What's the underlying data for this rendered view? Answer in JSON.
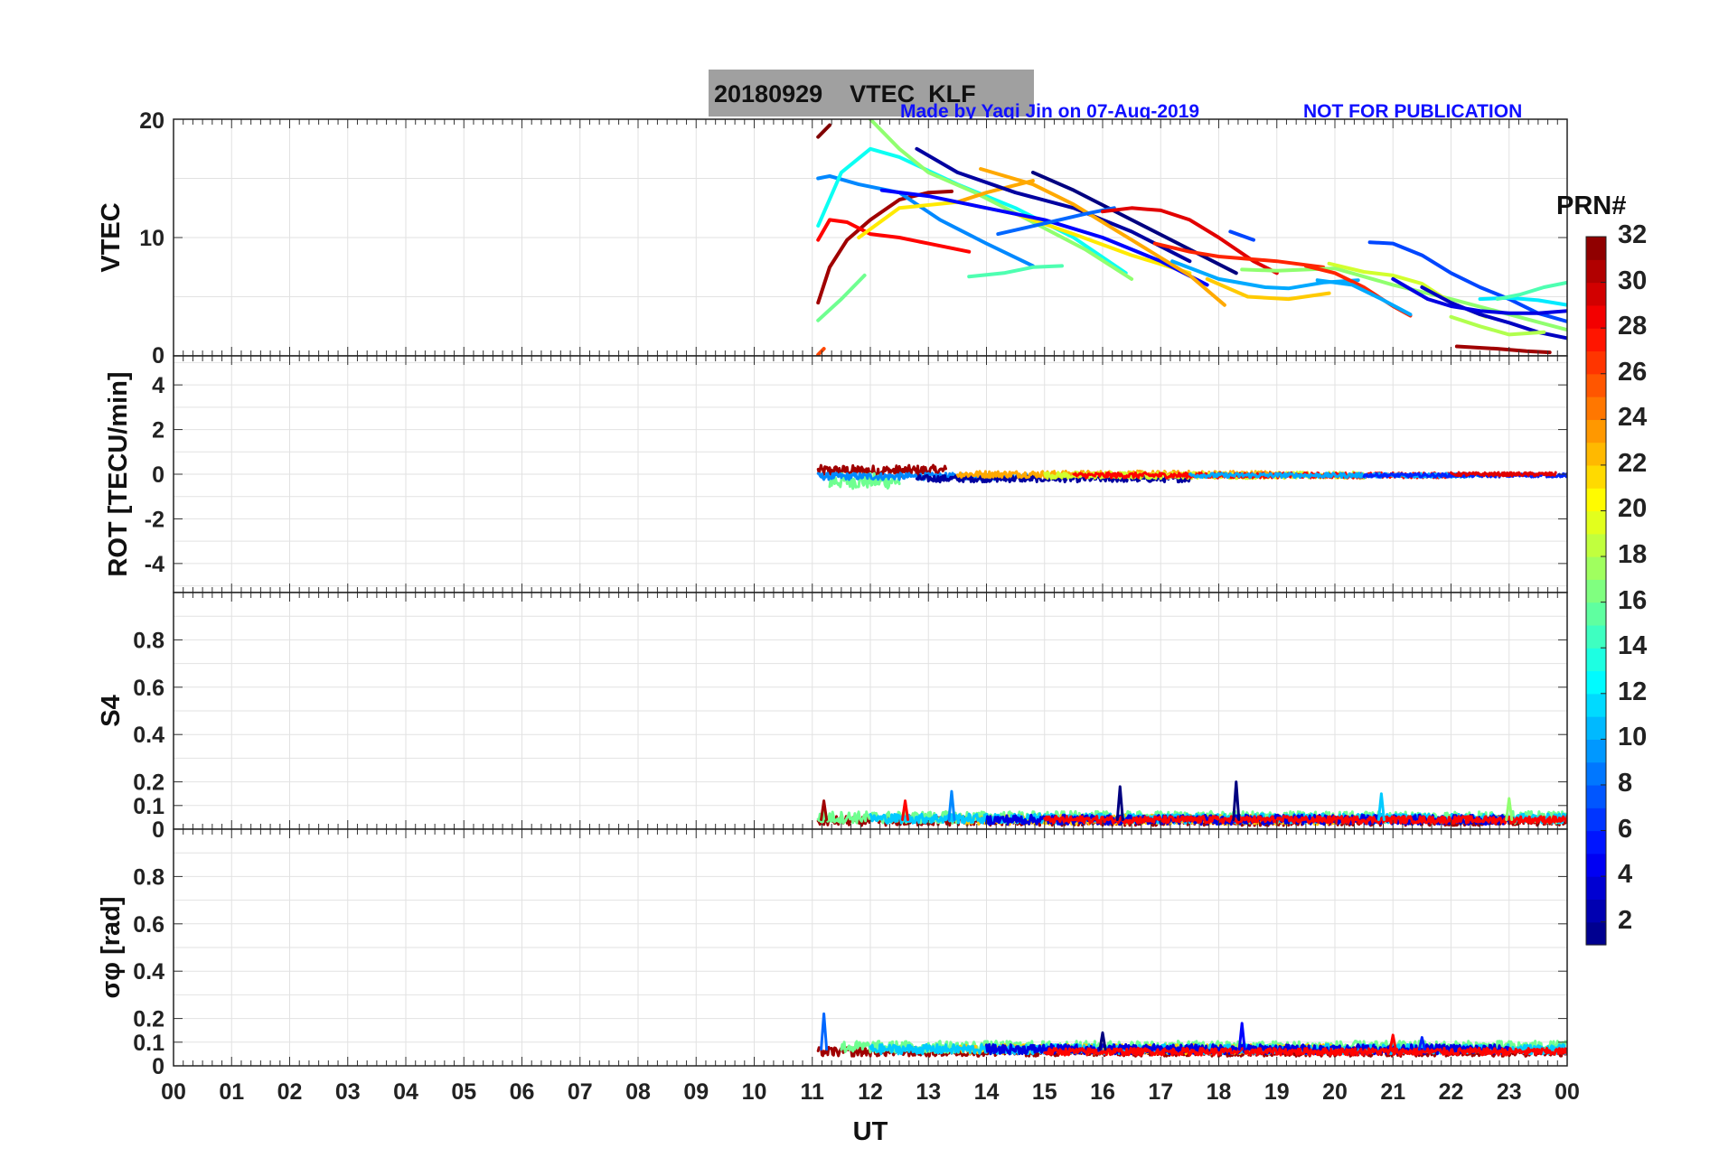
{
  "header": {
    "title": "20180929    VTEC  KLF",
    "credit": "Made by Yaqi Jin on 07-Aug-2019",
    "notice": "NOT FOR PUBLICATION"
  },
  "colorbar": {
    "title": "PRN#",
    "ticks": [
      "2",
      "4",
      "6",
      "8",
      "10",
      "12",
      "14",
      "16",
      "18",
      "20",
      "22",
      "24",
      "26",
      "28",
      "30",
      "32"
    ],
    "range": [
      1,
      32
    ],
    "colormap": "jet"
  },
  "chart_data": [
    {
      "type": "line",
      "panel": "vtec",
      "ylabel": "VTEC",
      "ylim": [
        0,
        20
      ],
      "yticks": [
        "0",
        "10",
        "20"
      ],
      "xlim": [
        0,
        24
      ],
      "series": [
        {
          "prn": 31,
          "x": [
            11.1,
            11.3,
            11.6,
            12.0,
            12.5,
            13.0,
            13.4
          ],
          "y": [
            4.5,
            7.5,
            9.8,
            11.5,
            13.2,
            13.8,
            13.9
          ]
        },
        {
          "prn": 16,
          "x": [
            11.1,
            11.5,
            11.9
          ],
          "y": [
            3.0,
            4.8,
            6.8
          ]
        },
        {
          "prn": 28,
          "x": [
            11.1,
            11.3,
            11.6,
            12.0,
            12.5,
            13.0,
            13.7
          ],
          "y": [
            9.8,
            11.5,
            11.3,
            10.3,
            10.0,
            9.5,
            8.8
          ]
        },
        {
          "prn": 9,
          "x": [
            11.1,
            11.3,
            11.8,
            12.5,
            13.2,
            14.0,
            14.8
          ],
          "y": [
            15.0,
            15.2,
            14.5,
            13.8,
            11.5,
            9.5,
            7.6
          ]
        },
        {
          "prn": 13,
          "x": [
            11.1,
            11.5,
            12.0,
            12.5,
            13.5,
            14.5,
            15.5,
            16.4
          ],
          "y": [
            11.0,
            15.5,
            17.5,
            16.8,
            14.5,
            12.5,
            10.0,
            7.0
          ]
        },
        {
          "prn": 17,
          "x": [
            12.0,
            12.5,
            13.0,
            13.8,
            14.8,
            15.7,
            16.5
          ],
          "y": [
            20.0,
            17.5,
            15.5,
            13.8,
            11.3,
            9.0,
            6.5
          ]
        },
        {
          "prn": 21,
          "x": [
            11.8,
            12.5,
            13.5,
            14.5,
            15.5,
            16.5,
            17.5
          ],
          "y": [
            10.0,
            12.5,
            13.0,
            12.0,
            10.3,
            8.5,
            7.0
          ]
        },
        {
          "prn": 23,
          "x": [
            13.5,
            14.0,
            14.8
          ],
          "y": [
            13.0,
            13.8,
            14.8
          ]
        },
        {
          "prn": 2,
          "x": [
            12.8,
            13.5,
            14.5,
            15.5,
            16.5,
            17.5
          ],
          "y": [
            17.5,
            15.5,
            13.8,
            12.5,
            10.5,
            8.0
          ]
        },
        {
          "prn": 5,
          "x": [
            12.2,
            13.0,
            14.0,
            15.0,
            16.0,
            17.0,
            17.8
          ],
          "y": [
            14.0,
            13.5,
            12.5,
            11.5,
            10.0,
            8.0,
            6.0
          ]
        },
        {
          "prn": 23,
          "x": [
            13.9,
            14.8,
            15.5,
            16.5,
            17.5,
            18.1
          ],
          "y": [
            15.8,
            14.5,
            12.8,
            9.8,
            6.8,
            4.3
          ]
        },
        {
          "prn": 1,
          "x": [
            14.8,
            15.5,
            16.5,
            17.5,
            18.3
          ],
          "y": [
            15.5,
            14.0,
            11.5,
            9.0,
            7.0
          ]
        },
        {
          "prn": 15,
          "x": [
            13.7,
            14.3,
            14.8,
            15.3
          ],
          "y": [
            6.7,
            7.0,
            7.5,
            7.6
          ]
        },
        {
          "prn": 8,
          "x": [
            14.2,
            15.0,
            15.7,
            16.2
          ],
          "y": [
            10.3,
            11.2,
            12.0,
            12.5
          ]
        },
        {
          "prn": 29,
          "x": [
            16.0,
            16.5,
            17.0,
            17.5,
            18.0,
            18.6,
            19.0
          ],
          "y": [
            12.2,
            12.5,
            12.3,
            11.5,
            10.0,
            8.0,
            7.0
          ]
        },
        {
          "prn": 27,
          "x": [
            16.9,
            17.5,
            18.0,
            18.5,
            19.0,
            19.8
          ],
          "y": [
            9.5,
            8.8,
            8.4,
            8.2,
            8.0,
            7.5
          ]
        },
        {
          "prn": 10,
          "x": [
            17.2,
            18.0,
            18.8,
            19.2,
            19.8,
            20.4
          ],
          "y": [
            8.0,
            6.5,
            5.8,
            5.7,
            6.2,
            6.4
          ]
        },
        {
          "prn": 22,
          "x": [
            17.8,
            18.5,
            19.2,
            19.9
          ],
          "y": [
            6.5,
            5.0,
            4.8,
            5.3
          ]
        },
        {
          "prn": 17,
          "x": [
            18.4,
            19.0,
            20.0,
            21.0,
            22.0,
            23.0,
            24.0
          ],
          "y": [
            7.3,
            7.2,
            7.4,
            6.0,
            4.8,
            3.5,
            2.2
          ]
        },
        {
          "prn": 27,
          "x": [
            19.5,
            20.0,
            20.5,
            21.0,
            21.3
          ],
          "y": [
            7.6,
            7.0,
            5.8,
            4.2,
            3.4
          ]
        },
        {
          "prn": 10,
          "x": [
            19.7,
            20.3,
            20.8,
            21.3
          ],
          "y": [
            6.4,
            6.0,
            4.8,
            3.5
          ]
        },
        {
          "prn": 7,
          "x": [
            18.2,
            18.6
          ],
          "y": [
            10.5,
            9.8
          ]
        },
        {
          "prn": 7,
          "x": [
            20.6,
            21.0,
            21.5,
            22.0,
            22.5,
            23.0,
            23.5,
            24.0
          ],
          "y": [
            9.6,
            9.5,
            8.5,
            7.0,
            5.8,
            4.8,
            3.6,
            2.9
          ]
        },
        {
          "prn": 19,
          "x": [
            19.9,
            20.5,
            21.0,
            21.5,
            22.0,
            22.6
          ],
          "y": [
            7.8,
            7.1,
            6.8,
            6.1,
            4.5,
            3.3
          ]
        },
        {
          "prn": 3,
          "x": [
            21.5,
            22.0,
            22.5,
            23.0,
            23.5,
            24.0
          ],
          "y": [
            5.8,
            4.5,
            3.5,
            2.8,
            2.0,
            1.5
          ]
        },
        {
          "prn": 4,
          "x": [
            21.0,
            21.6,
            22.0,
            22.5,
            23.0,
            23.5,
            24.0
          ],
          "y": [
            6.5,
            4.8,
            4.2,
            3.8,
            3.6,
            3.6,
            3.8
          ]
        },
        {
          "prn": 12,
          "x": [
            22.5,
            23.0,
            23.5,
            24.0
          ],
          "y": [
            4.8,
            4.9,
            4.7,
            4.3
          ]
        },
        {
          "prn": 15,
          "x": [
            22.8,
            23.2,
            23.6,
            24.0
          ],
          "y": [
            4.8,
            5.2,
            5.8,
            6.2
          ]
        },
        {
          "prn": 18,
          "x": [
            22.0,
            22.5,
            23.0,
            23.6
          ],
          "y": [
            3.3,
            2.5,
            1.8,
            2.0
          ]
        },
        {
          "prn": 31,
          "x": [
            22.1,
            22.8,
            23.3,
            23.7
          ],
          "y": [
            0.8,
            0.6,
            0.4,
            0.3
          ]
        },
        {
          "prn": 32,
          "x": [
            11.1,
            11.3
          ],
          "y": [
            18.5,
            19.5
          ]
        },
        {
          "prn": 26,
          "x": [
            11.1,
            11.2
          ],
          "y": [
            0.1,
            0.6
          ]
        }
      ]
    },
    {
      "type": "line",
      "panel": "rot",
      "ylabel": "ROT [TECU/min]",
      "ylim": [
        -5.3,
        5.3
      ],
      "yticks": [
        "-4",
        "-2",
        "0",
        "2",
        "4"
      ],
      "xlim": [
        0,
        24
      ],
      "segments": [
        {
          "prn": 31,
          "x_start": 11.1,
          "x_end": 13.3,
          "baseline": 0.15,
          "amplitude": 0.25
        },
        {
          "prn": 16,
          "x_start": 11.3,
          "x_end": 12.5,
          "baseline": -0.3,
          "amplitude": 0.35
        },
        {
          "prn": 9,
          "x_start": 11.1,
          "x_end": 14.8,
          "baseline": -0.1,
          "amplitude": 0.15
        },
        {
          "prn": 2,
          "x_start": 12.8,
          "x_end": 17.5,
          "baseline": -0.2,
          "amplitude": 0.15
        },
        {
          "prn": 23,
          "x_start": 13.5,
          "x_end": 19.0,
          "baseline": 0.0,
          "amplitude": 0.15
        },
        {
          "prn": 19,
          "x_start": 15.0,
          "x_end": 20.5,
          "baseline": -0.05,
          "amplitude": 0.15
        },
        {
          "prn": 28,
          "x_start": 15.5,
          "x_end": 22.0,
          "baseline": -0.05,
          "amplitude": 0.12
        },
        {
          "prn": 10,
          "x_start": 17.5,
          "x_end": 22.5,
          "baseline": -0.05,
          "amplitude": 0.1
        },
        {
          "prn": 6,
          "x_start": 20.5,
          "x_end": 24.0,
          "baseline": -0.05,
          "amplitude": 0.08
        },
        {
          "prn": 29,
          "x_start": 22.0,
          "x_end": 23.8,
          "baseline": 0.0,
          "amplitude": 0.08
        }
      ]
    },
    {
      "type": "line",
      "panel": "s4",
      "ylabel": "S4",
      "ylim": [
        0,
        1
      ],
      "yticks": [
        "0",
        "0.1",
        "0.2",
        "0.4",
        "0.6",
        "0.8"
      ],
      "xlim": [
        0,
        24
      ],
      "segments": [
        {
          "prn": 31,
          "x_start": 11.1,
          "x_end": 24.0,
          "baseline": 0.035,
          "amplitude": 0.02
        },
        {
          "prn": 16,
          "x_start": 11.1,
          "x_end": 24.0,
          "baseline": 0.05,
          "amplitude": 0.025
        },
        {
          "prn": 22,
          "x_start": 13.5,
          "x_end": 20.0,
          "baseline": 0.04,
          "amplitude": 0.02
        },
        {
          "prn": 11,
          "x_start": 12.0,
          "x_end": 24.0,
          "baseline": 0.045,
          "amplitude": 0.02
        },
        {
          "prn": 4,
          "x_start": 14.0,
          "x_end": 23.0,
          "baseline": 0.04,
          "amplitude": 0.02
        },
        {
          "prn": 28,
          "x_start": 15.0,
          "x_end": 24.0,
          "baseline": 0.04,
          "amplitude": 0.015
        }
      ],
      "spikes": [
        {
          "prn": 31,
          "x": 11.2,
          "y": 0.12
        },
        {
          "prn": 9,
          "x": 13.4,
          "y": 0.16
        },
        {
          "prn": 1,
          "x": 16.3,
          "y": 0.18
        },
        {
          "prn": 1,
          "x": 18.3,
          "y": 0.2
        },
        {
          "prn": 11,
          "x": 20.8,
          "y": 0.15
        },
        {
          "prn": 17,
          "x": 23.0,
          "y": 0.13
        },
        {
          "prn": 28,
          "x": 12.6,
          "y": 0.12
        }
      ]
    },
    {
      "type": "line",
      "panel": "sigma_phi",
      "ylabel": "σφ [rad]",
      "ylim": [
        0,
        1
      ],
      "yticks": [
        "0",
        "0.1",
        "0.2",
        "0.4",
        "0.6",
        "0.8"
      ],
      "xlim": [
        0,
        24
      ],
      "segments": [
        {
          "prn": 31,
          "x_start": 11.1,
          "x_end": 24.0,
          "baseline": 0.06,
          "amplitude": 0.02
        },
        {
          "prn": 16,
          "x_start": 11.5,
          "x_end": 24.0,
          "baseline": 0.08,
          "amplitude": 0.025
        },
        {
          "prn": 22,
          "x_start": 13.5,
          "x_end": 20.0,
          "baseline": 0.07,
          "amplitude": 0.02
        },
        {
          "prn": 11,
          "x_start": 12.0,
          "x_end": 24.0,
          "baseline": 0.07,
          "amplitude": 0.02
        },
        {
          "prn": 4,
          "x_start": 14.0,
          "x_end": 23.0,
          "baseline": 0.07,
          "amplitude": 0.02
        },
        {
          "prn": 28,
          "x_start": 15.0,
          "x_end": 24.0,
          "baseline": 0.06,
          "amplitude": 0.015
        }
      ],
      "spikes": [
        {
          "prn": 8,
          "x": 11.2,
          "y": 0.22
        },
        {
          "prn": 1,
          "x": 16.0,
          "y": 0.14
        },
        {
          "prn": 5,
          "x": 18.4,
          "y": 0.18
        },
        {
          "prn": 28,
          "x": 21.0,
          "y": 0.13
        },
        {
          "prn": 6,
          "x": 21.5,
          "y": 0.12
        }
      ]
    }
  ],
  "xaxis": {
    "label": "UT",
    "ticks": [
      "00",
      "01",
      "02",
      "03",
      "04",
      "05",
      "06",
      "07",
      "08",
      "09",
      "10",
      "11",
      "12",
      "13",
      "14",
      "15",
      "16",
      "17",
      "18",
      "19",
      "20",
      "21",
      "22",
      "23",
      "00"
    ]
  }
}
